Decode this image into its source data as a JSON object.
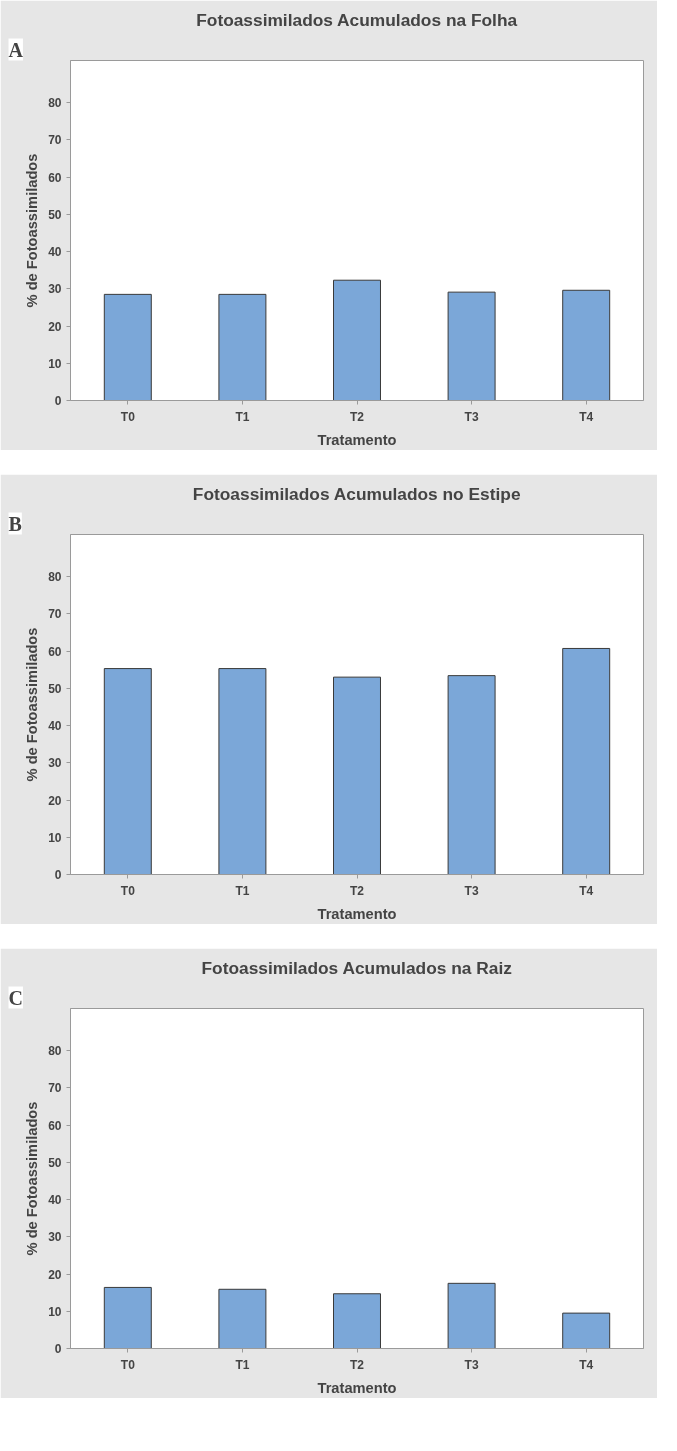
{
  "chart_data": [
    {
      "type": "bar",
      "title": "Fotoassimilados Acumulados na Folha",
      "xlabel": "Tratamento",
      "ylabel": "% de Fotoassimilados",
      "annotations": [
        "A"
      ],
      "categories": [
        "T0",
        "T1",
        "T2",
        "T3",
        "T4"
      ],
      "values": [
        28.5,
        28.5,
        32.3,
        29.1,
        29.6
      ],
      "color": "#7ba7d8",
      "ylim": [
        0,
        91.3
      ],
      "yticks": [
        0,
        10,
        20,
        30,
        40,
        50,
        60,
        70,
        80
      ]
    },
    {
      "type": "bar",
      "title": "Fotoassimilados Acumulados no Estipe",
      "xlabel": "Tratamento",
      "ylabel": "% de Fotoassimilados",
      "annotations": [
        "B"
      ],
      "categories": [
        "T0",
        "T1",
        "T2",
        "T3",
        "T4"
      ],
      "values": [
        55.3,
        55.3,
        53.0,
        53.4,
        60.7
      ],
      "color": "#7ba7d8",
      "ylim": [
        0,
        91.3
      ],
      "yticks": [
        0,
        10,
        20,
        30,
        40,
        50,
        60,
        70,
        80
      ]
    },
    {
      "type": "bar",
      "title": "Fotoassimilados Acumulados na Raiz",
      "xlabel": "Tratamento",
      "ylabel": "% de Fotoassimilados",
      "annotations": [
        "C"
      ],
      "categories": [
        "T0",
        "T1",
        "T2",
        "T3",
        "T4"
      ],
      "values": [
        16.4,
        15.9,
        14.7,
        17.5,
        9.5
      ],
      "color": "#7ba7d8",
      "ylim": [
        0,
        91.3
      ],
      "yticks": [
        0,
        10,
        20,
        30,
        40,
        50,
        60,
        70,
        80
      ]
    }
  ]
}
